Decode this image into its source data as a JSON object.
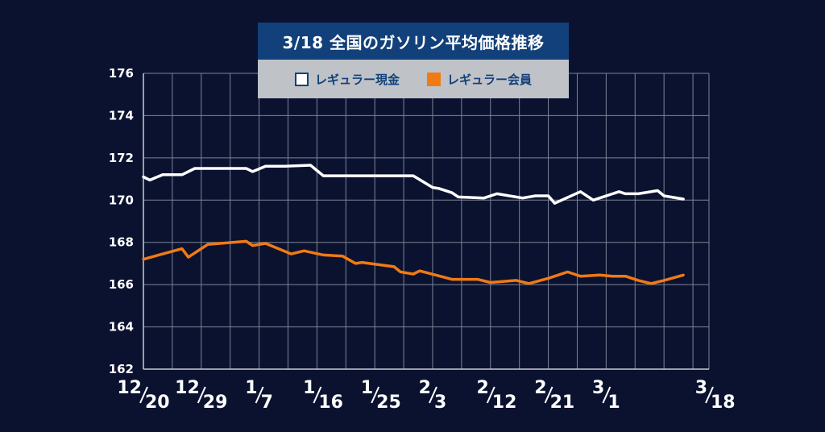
{
  "colors": {
    "background": "#0b1230",
    "title_bg": "#12407a",
    "legend_bg": "#bfc2c7",
    "grid": "#7d8494",
    "series_cash": "#ffffff",
    "series_member": "#f07a14"
  },
  "chart_data": {
    "type": "line",
    "title": "3/18 全国のガソリン平均価格推移",
    "xlabel": "",
    "ylabel": "",
    "ylim": [
      162,
      176
    ],
    "yticks": [
      162,
      164,
      166,
      168,
      170,
      172,
      174,
      176
    ],
    "grid": true,
    "legend_position": "top-center",
    "x_tick_labels": [
      {
        "top": "12",
        "bottom": "20"
      },
      {
        "top": "12",
        "bottom": "29"
      },
      {
        "top": "1",
        "bottom": "7"
      },
      {
        "top": "1",
        "bottom": "16"
      },
      {
        "top": "1",
        "bottom": "25"
      },
      {
        "top": "2",
        "bottom": "3"
      },
      {
        "top": "2",
        "bottom": "12"
      },
      {
        "top": "2",
        "bottom": "21"
      },
      {
        "top": "3",
        "bottom": "1"
      },
      {
        "top": "3",
        "bottom": "18"
      }
    ],
    "x_tick_days": [
      0,
      9,
      18,
      27,
      36,
      45,
      54,
      63,
      72,
      88
    ],
    "x_range": [
      0,
      88
    ],
    "series": [
      {
        "name": "レギュラー現金",
        "color": "#ffffff",
        "points": [
          [
            0,
            171.1
          ],
          [
            1,
            170.95
          ],
          [
            3,
            171.2
          ],
          [
            6,
            171.2
          ],
          [
            8,
            171.5
          ],
          [
            12,
            171.5
          ],
          [
            16,
            171.5
          ],
          [
            17,
            171.35
          ],
          [
            19,
            171.6
          ],
          [
            22,
            171.6
          ],
          [
            26,
            171.65
          ],
          [
            28,
            171.15
          ],
          [
            32,
            171.15
          ],
          [
            36,
            171.15
          ],
          [
            42,
            171.15
          ],
          [
            45,
            170.6
          ],
          [
            46,
            170.55
          ],
          [
            48,
            170.35
          ],
          [
            49,
            170.15
          ],
          [
            53,
            170.1
          ],
          [
            55,
            170.3
          ],
          [
            59,
            170.1
          ],
          [
            61,
            170.2
          ],
          [
            63,
            170.2
          ],
          [
            64,
            169.85
          ],
          [
            68,
            170.4
          ],
          [
            70,
            170.0
          ],
          [
            74,
            170.4
          ],
          [
            75,
            170.3
          ],
          [
            77,
            170.3
          ],
          [
            80,
            170.45
          ],
          [
            81,
            170.2
          ],
          [
            84,
            170.05
          ]
        ]
      },
      {
        "name": "レギュラー会員",
        "color": "#f07a14",
        "points": [
          [
            0,
            167.2
          ],
          [
            3,
            167.45
          ],
          [
            6,
            167.7
          ],
          [
            7,
            167.3
          ],
          [
            10,
            167.9
          ],
          [
            16,
            168.05
          ],
          [
            17,
            167.85
          ],
          [
            19,
            167.95
          ],
          [
            23,
            167.45
          ],
          [
            25,
            167.6
          ],
          [
            28,
            167.4
          ],
          [
            31,
            167.35
          ],
          [
            33,
            167.0
          ],
          [
            34,
            167.05
          ],
          [
            39,
            166.85
          ],
          [
            40,
            166.6
          ],
          [
            42,
            166.5
          ],
          [
            43,
            166.65
          ],
          [
            48,
            166.25
          ],
          [
            52,
            166.25
          ],
          [
            54,
            166.1
          ],
          [
            58,
            166.2
          ],
          [
            60,
            166.05
          ],
          [
            63,
            166.3
          ],
          [
            66,
            166.6
          ],
          [
            68,
            166.4
          ],
          [
            71,
            166.45
          ],
          [
            73,
            166.4
          ],
          [
            75,
            166.4
          ],
          [
            77,
            166.2
          ],
          [
            79,
            166.05
          ],
          [
            81,
            166.2
          ],
          [
            84,
            166.45
          ]
        ]
      }
    ]
  }
}
